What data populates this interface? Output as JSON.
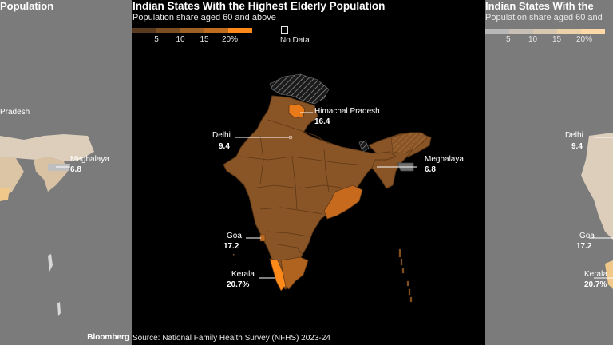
{
  "title": "Indian States With the Highest Elderly Population",
  "subtitle": "Population share aged 60 and above",
  "legend": {
    "ticks": [
      "5",
      "10",
      "15",
      "20%"
    ],
    "no_data_label": "No Data",
    "colors": [
      "#5a3a1e",
      "#7a4d22",
      "#9c5f24",
      "#c06c20",
      "#ff8a1a"
    ]
  },
  "callouts": [
    {
      "state": "Himachal Pradesh",
      "value": "16.4"
    },
    {
      "state": "Delhi",
      "value": "9.4"
    },
    {
      "state": "Meghalaya",
      "value": "6.8"
    },
    {
      "state": "Goa",
      "value": "17.2"
    },
    {
      "state": "Kerala",
      "value": "20.7%"
    }
  ],
  "source": "Source: National Family Health Survey (NFHS) 2023-24",
  "brand": "Bloomberg",
  "side_left": {
    "title_fragment": "Population",
    "label_fragment": "Pradesh",
    "meghalaya_name": "Meghalaya",
    "meghalaya_value": "6.8"
  },
  "side_right": {
    "title_fragment": "Indian States With the",
    "subtitle_fragment": "Population share aged 60 and",
    "ticks": [
      "5",
      "10",
      "15",
      "20%"
    ],
    "delhi_name": "Delhi",
    "delhi_value": "9.4",
    "goa_name": "Goa",
    "goa_value": "17.2",
    "kerala_name": "Kerala",
    "kerala_value": "20.7%"
  },
  "colors": {
    "background": "#000000",
    "side_panel": "#7b7b7b",
    "mainland": "#8a5526",
    "borders": "#5e3816",
    "highlight": "#ff8a1a",
    "meghalaya": "#6e6e6e"
  }
}
